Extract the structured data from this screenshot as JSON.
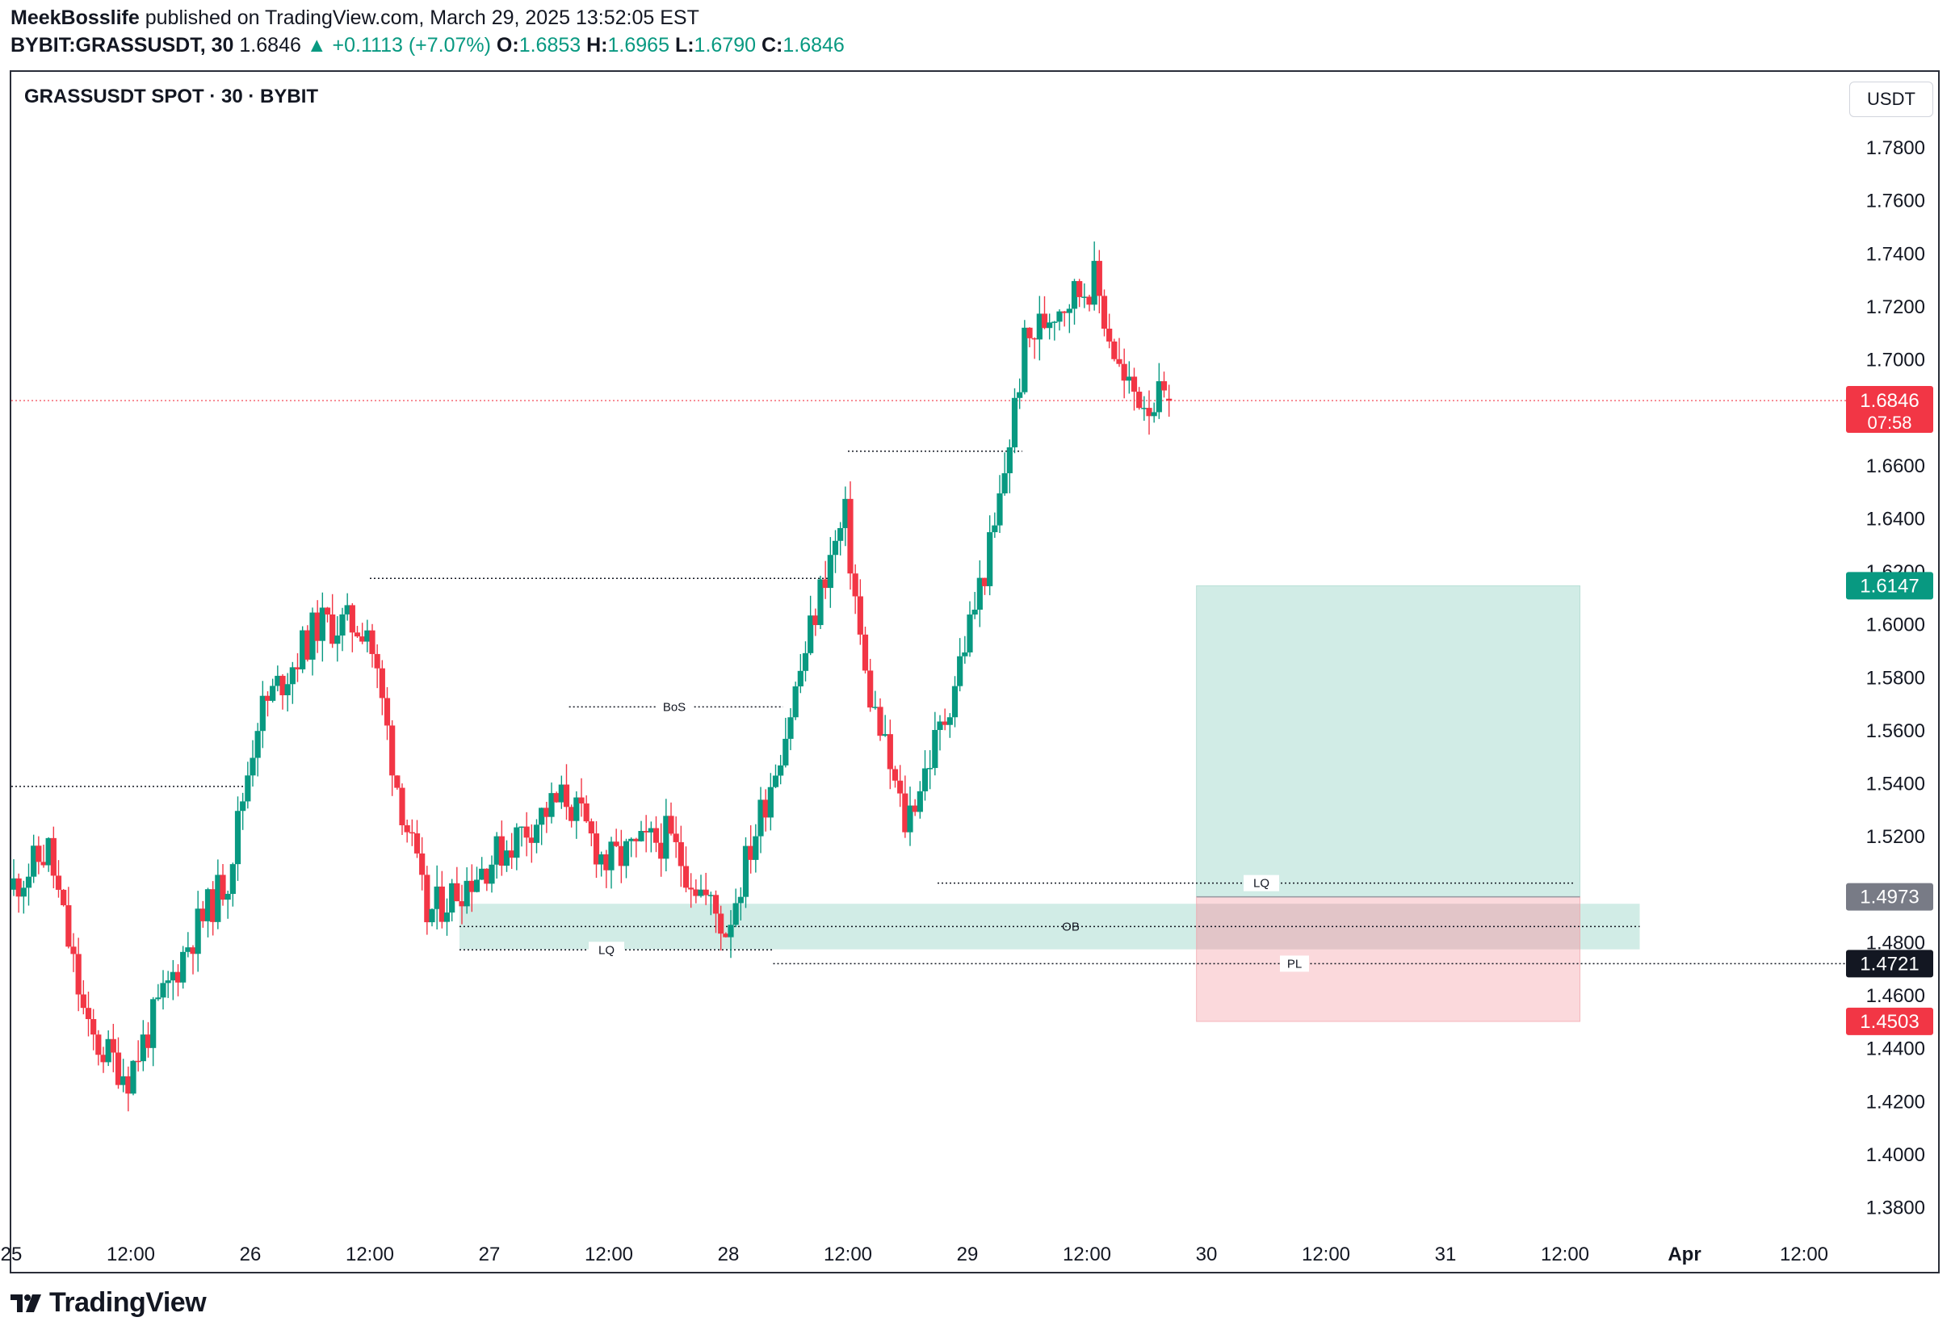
{
  "header": {
    "author": "MeekBosslife",
    "published_text": "published on TradingView.com, March 29, 2025 13:52:05 EST",
    "symbol": "BYBIT:GRASSUSDT, 30",
    "last": "1.6846",
    "change": "+0.1113 (+7.07%)",
    "o_label": "O:",
    "o": "1.6853",
    "h_label": "H:",
    "h": "1.6965",
    "l_label": "L:",
    "l": "1.6790",
    "c_label": "C:",
    "c": "1.6846"
  },
  "pane_title": "GRASSUSDT SPOT · 30 · BYBIT",
  "currency_button": "USDT",
  "brand": "TradingView",
  "colors": {
    "up": "#089981",
    "down": "#f23645",
    "tp_zone": "#d1ece6",
    "sl_zone": "#fbd9dc",
    "ob_zone": "#d1ece6"
  },
  "chart_data": {
    "type": "candlestick",
    "interval": "30",
    "ylim": [
      1.37,
      1.79
    ],
    "y_ticks": [
      "1.7800",
      "1.7600",
      "1.7400",
      "1.7200",
      "1.7000",
      "1.6600",
      "1.6400",
      "1.6200",
      "1.6000",
      "1.5800",
      "1.5600",
      "1.5400",
      "1.5200",
      "1.4800",
      "1.4600",
      "1.4400",
      "1.4200",
      "1.4000",
      "1.3800"
    ],
    "x_ticks": [
      "25",
      "12:00",
      "26",
      "12:00",
      "27",
      "12:00",
      "28",
      "12:00",
      "29",
      "12:00",
      "30",
      "12:00",
      "31",
      "12:00",
      "Apr",
      "12:00"
    ],
    "x_range_days": [
      25.0,
      32.5
    ],
    "candles_total": 233,
    "price_series_anchors": [
      {
        "t": "25 00:00",
        "close": 1.5
      },
      {
        "t": "25 04:00",
        "close": 1.515
      },
      {
        "t": "25 08:00",
        "close": 1.445
      },
      {
        "t": "25 12:00",
        "close": 1.43
      },
      {
        "t": "25 18:00",
        "close": 1.48
      },
      {
        "t": "25 22:00",
        "close": 1.505
      },
      {
        "t": "26 01:00",
        "close": 1.565
      },
      {
        "t": "26 07:00",
        "close": 1.6
      },
      {
        "t": "26 12:00",
        "close": 1.6
      },
      {
        "t": "26 15:00",
        "close": 1.54
      },
      {
        "t": "26 18:00",
        "close": 1.49
      },
      {
        "t": "27 06:00",
        "close": 1.53
      },
      {
        "t": "27 08:00",
        "close": 1.535
      },
      {
        "t": "27 12:00",
        "close": 1.51
      },
      {
        "t": "27 18:00",
        "close": 1.52
      },
      {
        "t": "28 00:00",
        "close": 1.485
      },
      {
        "t": "28 06:00",
        "close": 1.56
      },
      {
        "t": "28 10:00",
        "close": 1.62
      },
      {
        "t": "28 12:00",
        "close": 1.64
      },
      {
        "t": "28 14:00",
        "close": 1.58
      },
      {
        "t": "28 18:00",
        "close": 1.525
      },
      {
        "t": "28 22:00",
        "close": 1.565
      },
      {
        "t": "29 03:00",
        "close": 1.635
      },
      {
        "t": "29 06:00",
        "close": 1.705
      },
      {
        "t": "29 09:00",
        "close": 1.72
      },
      {
        "t": "29 13:00",
        "close": 1.73
      },
      {
        "t": "29 16:00",
        "close": 1.69
      },
      {
        "t": "29 18:30",
        "close": 1.6846
      }
    ],
    "last_price": 1.6846,
    "last_price_label": "1.6846",
    "countdown_label": "07:58",
    "position": {
      "type": "long",
      "entry": 1.4973,
      "entry_label": "1.4973",
      "target": 1.6147,
      "target_label": "1.6147",
      "stop": 1.4503,
      "stop_label": "1.4503",
      "t_start": "29 23:00",
      "t_end": "31 13:30"
    },
    "pl_level": {
      "price": 1.4721,
      "price_label": "1.4721",
      "label": "PL"
    },
    "ob_zone": {
      "top": 1.4947,
      "bottom": 1.4775,
      "mid": 1.4861,
      "label": "OB"
    },
    "levels": [
      {
        "label": "",
        "price": 1.539
      },
      {
        "label": "",
        "price": 1.6175
      },
      {
        "label": "BoS",
        "price": 1.569
      },
      {
        "label": "",
        "price": 1.6655
      },
      {
        "label": "LQ",
        "price": 1.5025
      },
      {
        "label": "LQ",
        "price": 1.4773
      }
    ]
  }
}
